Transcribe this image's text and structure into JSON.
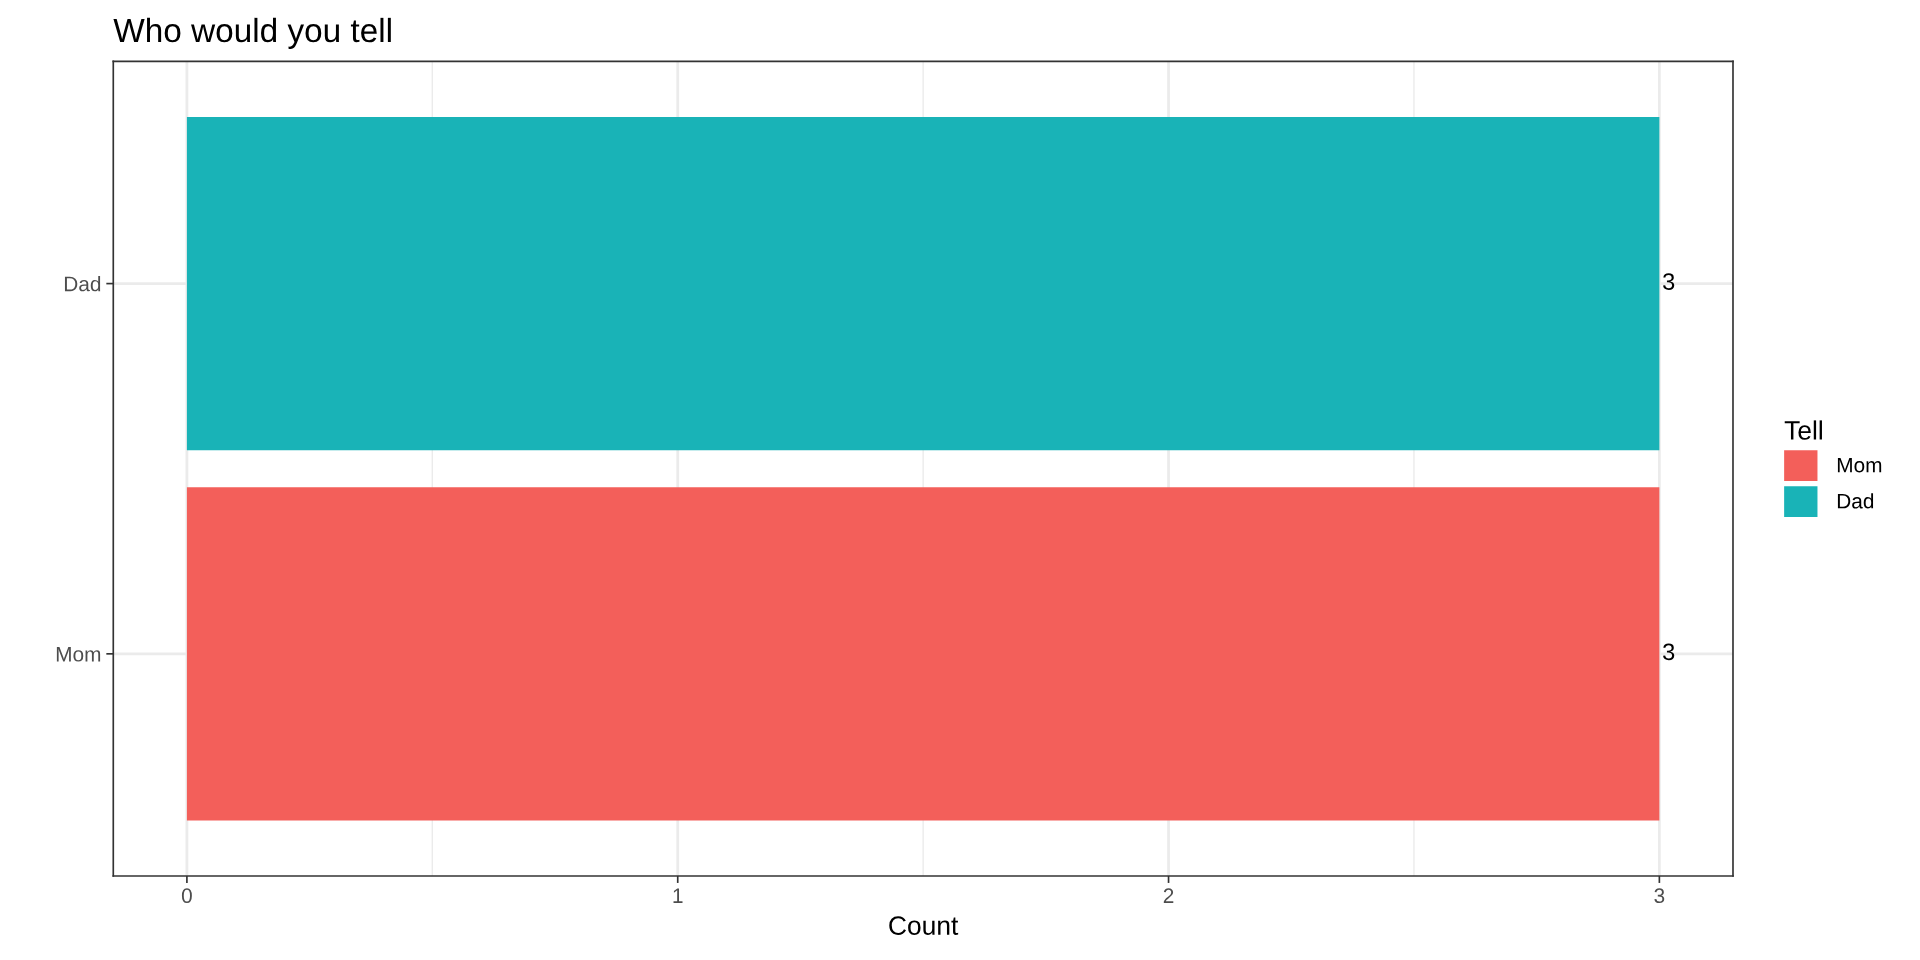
{
  "chart_data": {
    "type": "bar",
    "orientation": "horizontal",
    "title": "Who would you tell",
    "xlabel": "Count",
    "legend_title": "Tell",
    "categories": [
      "Dad",
      "Mom"
    ],
    "series": [
      {
        "name": "Mom",
        "color": "#f35f5a",
        "values": [
          null,
          3
        ]
      },
      {
        "name": "Dad",
        "color": "#19b3b7",
        "values": [
          3,
          null
        ]
      }
    ],
    "xlim": [
      -0.15,
      3.15
    ],
    "xticks": [
      0,
      1,
      2,
      3
    ],
    "grid": true,
    "legend": "right",
    "data_labels": true
  }
}
